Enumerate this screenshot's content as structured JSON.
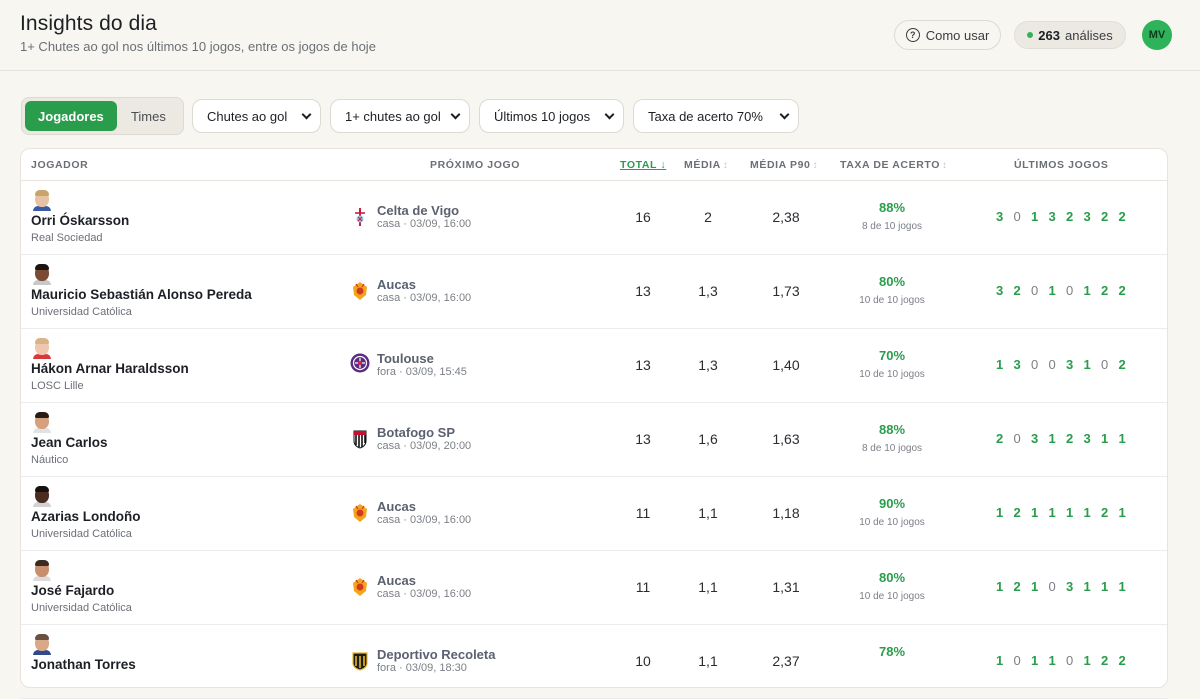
{
  "header": {
    "title": "Insights do dia",
    "subtitle": "1+ Chutes ao gol nos últimos 10 jogos, entre os jogos de hoje",
    "help_label": "Como usar",
    "analyses_count": "263",
    "analyses_label": "análises",
    "avatar_initials": "MV"
  },
  "filters": {
    "segment_active": "Jogadores",
    "segment_inactive": "Times",
    "stat": "Chutes ao gol",
    "threshold": "1+ chutes ao gol",
    "period": "Últimos 10 jogos",
    "rate": "Taxa de acerto 70%"
  },
  "columns": {
    "player": "JOGADOR",
    "next_game": "PRÓXIMO JOGO",
    "total": "TOTAL",
    "avg": "MÉDIA",
    "avg_p90": "MÉDIA P90",
    "hit_rate": "TAXA DE ACERTO",
    "last_games": "ÚLTIMOS JOGOS"
  },
  "rows": [
    {
      "name": "Orri Óskarsson",
      "team": "Real Sociedad",
      "opponent": "Celta de Vigo",
      "venue": "casa · 03/09, 16:00",
      "crest": "celta-crest",
      "total": "16",
      "avg": "2",
      "p90": "2,38",
      "rate": "88%",
      "rate_sub": "8 de 10 jogos",
      "last": [
        "3",
        "0",
        "1",
        "3",
        "2",
        "3",
        "2",
        "2"
      ]
    },
    {
      "name": "Mauricio Sebastián Alonso Pereda",
      "team": "Universidad Católica",
      "opponent": "Aucas",
      "venue": "casa · 03/09, 16:00",
      "crest": "aucas-crest",
      "total": "13",
      "avg": "1,3",
      "p90": "1,73",
      "rate": "80%",
      "rate_sub": "10 de 10 jogos",
      "last": [
        "3",
        "2",
        "0",
        "1",
        "0",
        "1",
        "2",
        "2"
      ]
    },
    {
      "name": "Hákon Arnar Haraldsson",
      "team": "LOSC Lille",
      "opponent": "Toulouse",
      "venue": "fora · 03/09, 15:45",
      "crest": "toulouse-crest",
      "total": "13",
      "avg": "1,3",
      "p90": "1,40",
      "rate": "70%",
      "rate_sub": "10 de 10 jogos",
      "last": [
        "1",
        "3",
        "0",
        "0",
        "3",
        "1",
        "0",
        "2"
      ]
    },
    {
      "name": "Jean Carlos",
      "team": "Náutico",
      "opponent": "Botafogo SP",
      "venue": "casa · 03/09, 20:00",
      "crest": "botafogo-crest",
      "total": "13",
      "avg": "1,6",
      "p90": "1,63",
      "rate": "88%",
      "rate_sub": "8 de 10 jogos",
      "last": [
        "2",
        "0",
        "3",
        "1",
        "2",
        "3",
        "1",
        "1"
      ]
    },
    {
      "name": "Azarias Londoño",
      "team": "Universidad Católica",
      "opponent": "Aucas",
      "venue": "casa · 03/09, 16:00",
      "crest": "aucas-crest",
      "total": "11",
      "avg": "1,1",
      "p90": "1,18",
      "rate": "90%",
      "rate_sub": "10 de 10 jogos",
      "last": [
        "1",
        "2",
        "1",
        "1",
        "1",
        "1",
        "2",
        "1"
      ]
    },
    {
      "name": "José Fajardo",
      "team": "Universidad Católica",
      "opponent": "Aucas",
      "venue": "casa · 03/09, 16:00",
      "crest": "aucas-crest",
      "total": "11",
      "avg": "1,1",
      "p90": "1,31",
      "rate": "80%",
      "rate_sub": "10 de 10 jogos",
      "last": [
        "1",
        "2",
        "1",
        "0",
        "3",
        "1",
        "1",
        "1"
      ]
    },
    {
      "name": "Jonathan Torres",
      "team": "",
      "opponent": "Deportivo Recoleta",
      "venue": "fora · 03/09, 18:30",
      "crest": "recoleta-crest",
      "total": "10",
      "avg": "1,1",
      "p90": "2,37",
      "rate": "78%",
      "rate_sub": "",
      "last": [
        "1",
        "0",
        "1",
        "1",
        "0",
        "1",
        "2",
        "2"
      ]
    }
  ]
}
